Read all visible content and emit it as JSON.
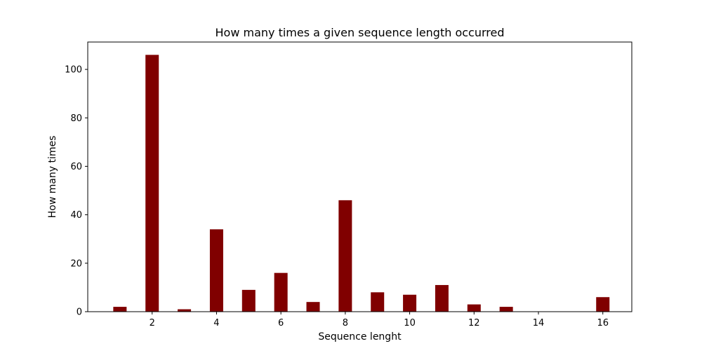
{
  "chart_data": {
    "type": "bar",
    "title": "How many times a given sequence length occurred",
    "xlabel": "Sequence lenght",
    "ylabel": "How many times",
    "x": [
      1,
      2,
      3,
      4,
      5,
      6,
      7,
      8,
      9,
      10,
      11,
      12,
      13,
      14,
      15,
      16
    ],
    "values": [
      2,
      106,
      1,
      34,
      9,
      16,
      4,
      46,
      8,
      7,
      11,
      3,
      2,
      0,
      0,
      6
    ],
    "xlim": [
      0.0,
      16.9
    ],
    "ylim": [
      0,
      111.3
    ],
    "x_ticks": [
      2,
      4,
      6,
      8,
      10,
      12,
      14,
      16
    ],
    "y_ticks": [
      0,
      20,
      40,
      60,
      80,
      100
    ],
    "bar_color": "#800000",
    "grid": false,
    "legend": "none"
  }
}
